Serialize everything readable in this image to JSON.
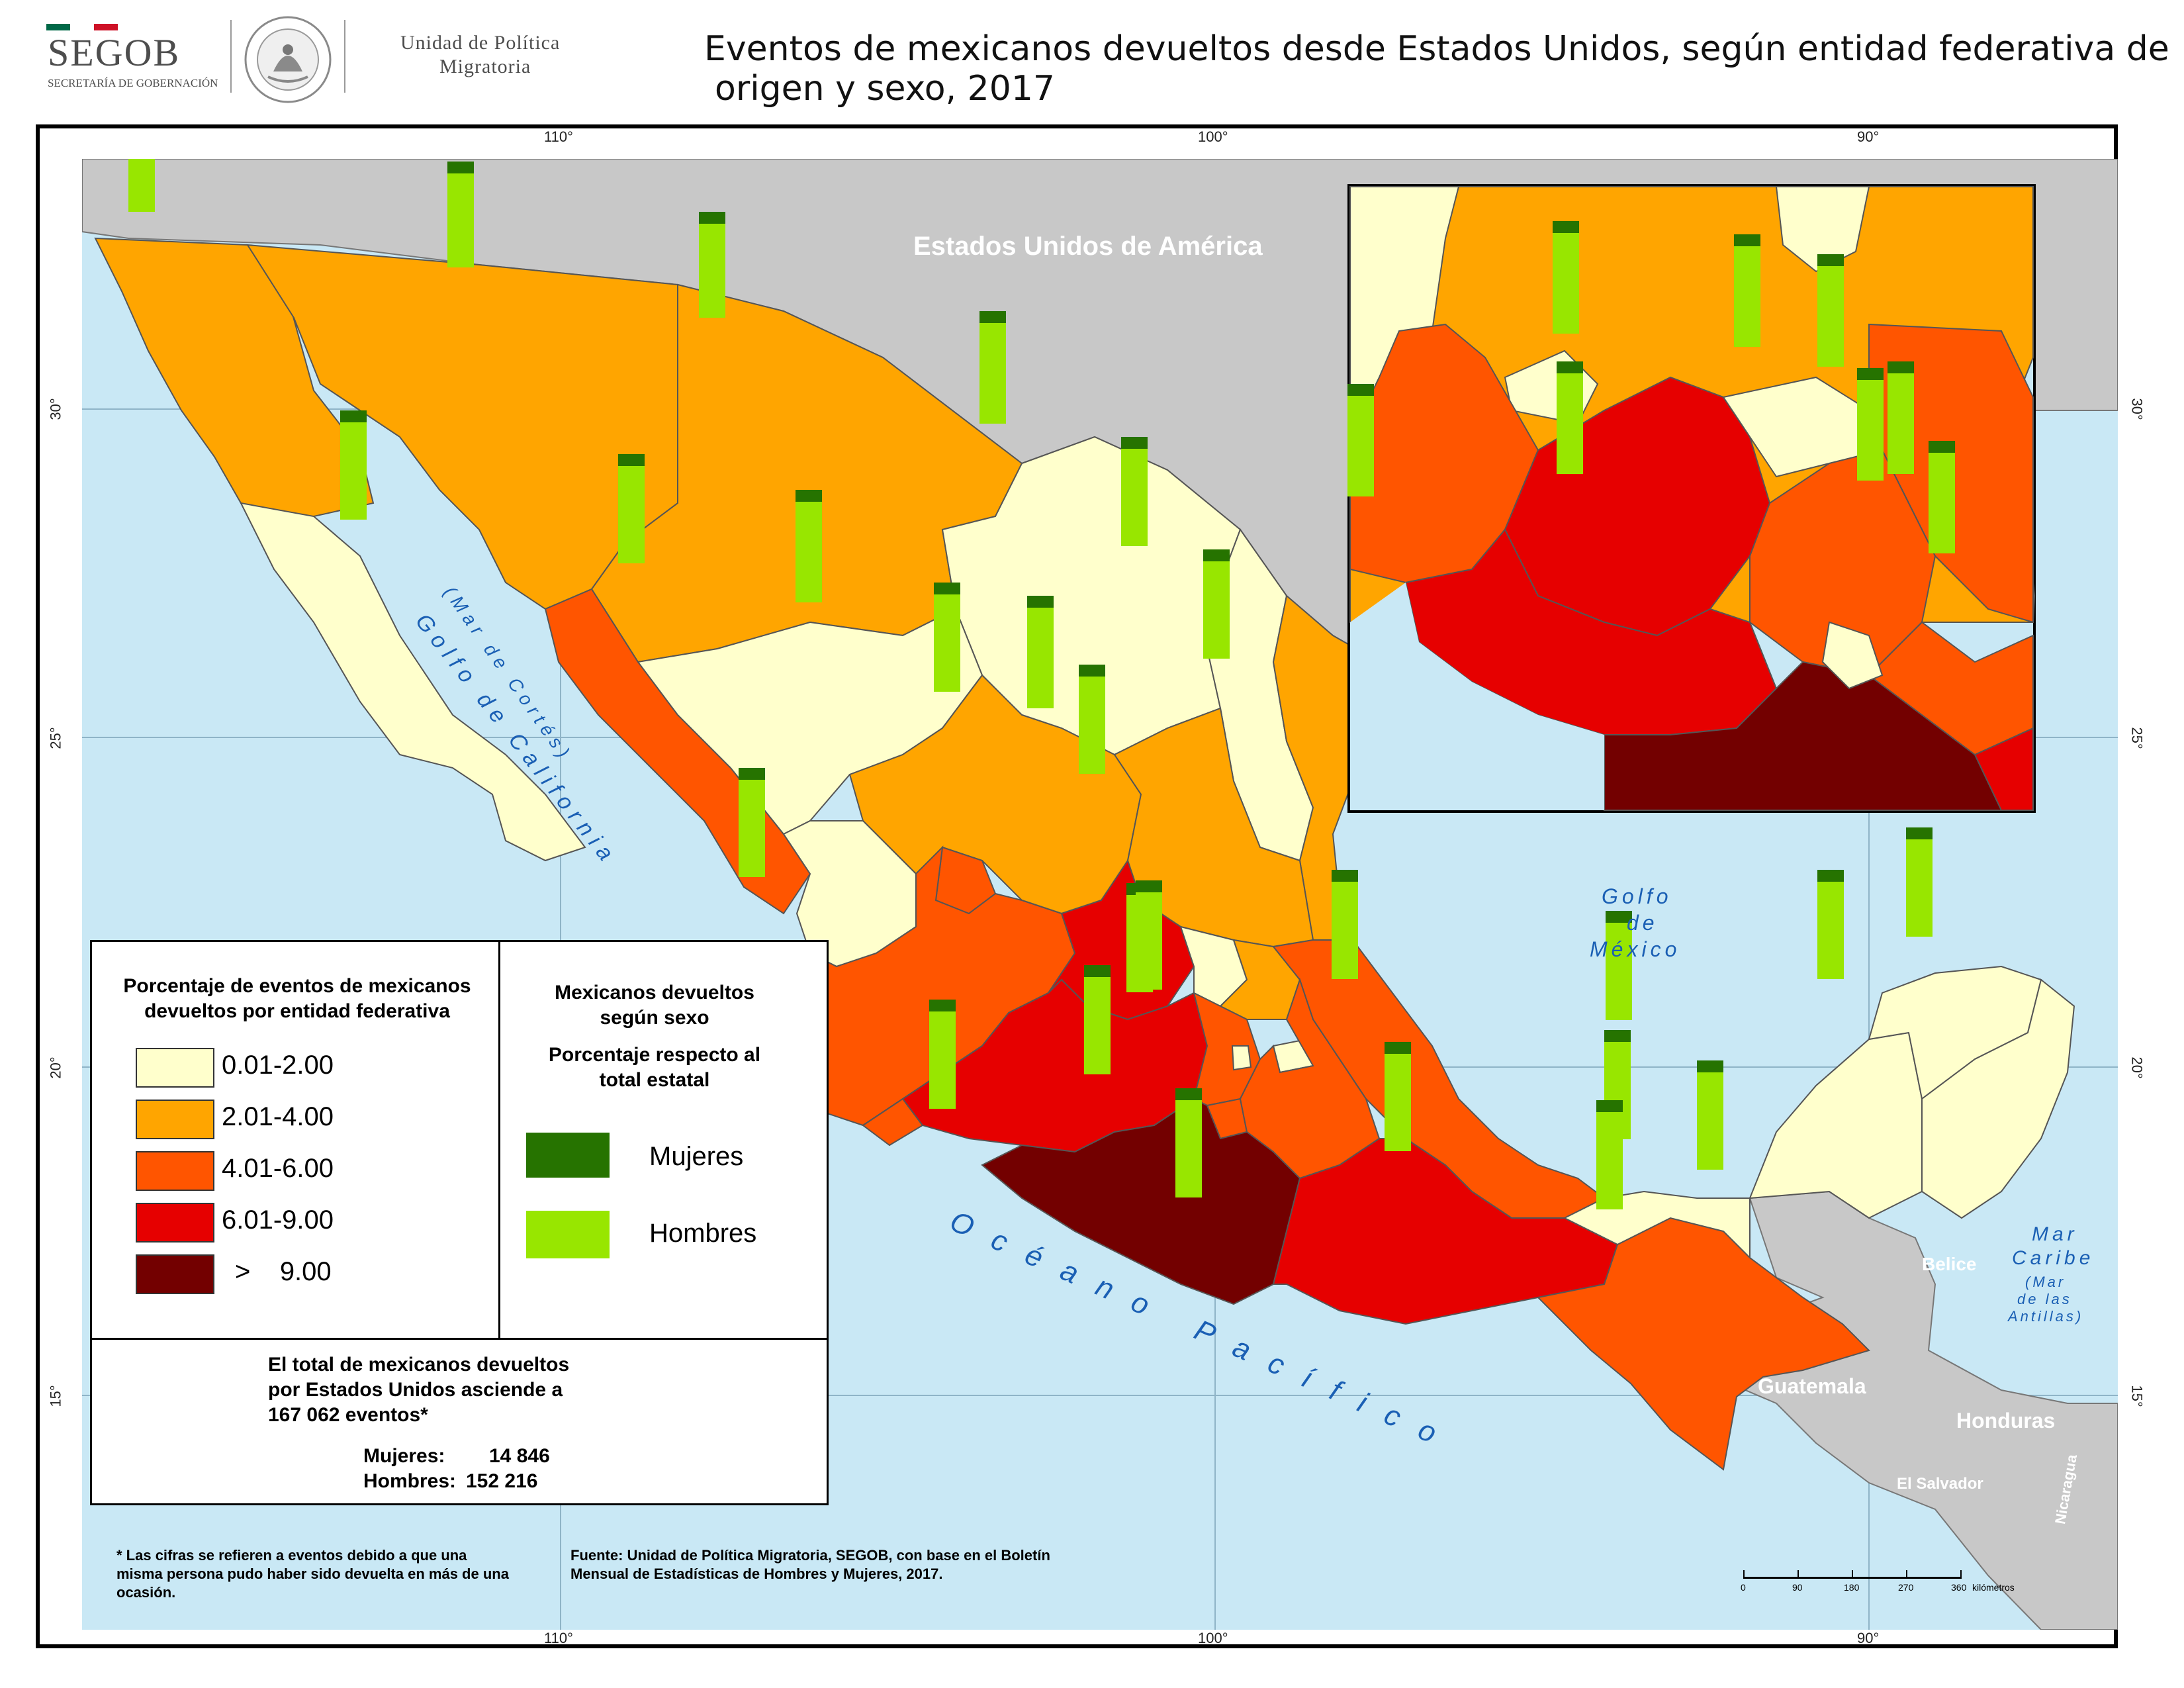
{
  "header": {
    "org_name": "SEGOB",
    "org_subtitle": "SECRETARÍA DE GOBERNACIÓN",
    "unit_line1": "Unidad de Política",
    "unit_line2": "Migratoria",
    "title_line1": "Eventos de mexicanos devueltos desde Estados Unidos, según entidad federativa de",
    "title_line2": "origen y sexo, 2017"
  },
  "graticule": {
    "lon_labels": [
      "110°",
      "100°",
      "90°"
    ],
    "lat_labels": [
      "30°",
      "25°",
      "20°",
      "15°"
    ]
  },
  "places": {
    "usa": "Estados Unidos de América",
    "gulf_cal_1": "Golfo de California",
    "gulf_cal_2": "(Mar de Cortés)",
    "gulf_mex_1": "Golfo",
    "gulf_mex_2": "de",
    "gulf_mex_3": "México",
    "pacific": "Océano Pacífico",
    "carib_1": "Mar",
    "carib_2": "Caribe",
    "carib_3": "(Mar",
    "carib_4": "de las",
    "carib_5": "Antillas)",
    "belize": "Belice",
    "guatemala": "Guatemala",
    "honduras": "Honduras",
    "el_salvador": "El Salvador",
    "nicaragua": "Nicaragua"
  },
  "legend_pct": {
    "title": "Porcentaje de eventos de mexicanos devueltos por entidad federativa",
    "classes": [
      {
        "label": "0.01-2.00",
        "color": "#ffffcc"
      },
      {
        "label": "2.01-4.00",
        "color": "#ffa500"
      },
      {
        "label": "4.01-6.00",
        "color": "#ff5500"
      },
      {
        "label": "6.01-9.00",
        "color": "#e60000"
      },
      {
        "label": ">    9.00",
        "color": "#730000"
      }
    ]
  },
  "legend_sex": {
    "title": "Mexicanos devueltos según sexo",
    "subtitle": "Porcentaje respecto al total estatal",
    "items": [
      {
        "label": "Mujeres",
        "color": "#267300"
      },
      {
        "label": "Hombres",
        "color": "#98e600"
      }
    ]
  },
  "totals": {
    "line1": "El total de mexicanos devueltos",
    "line2": "por Estados Unidos asciende a",
    "line3": "167 062 eventos*",
    "women_label": "Mujeres:",
    "women_value": "14 846",
    "men_label": "Hombres:",
    "men_value": "152 216"
  },
  "footnote": "* Las cifras se refieren a eventos debido a que una misma persona pudo haber sido devuelta en más de una ocasión.",
  "source": "Fuente: Unidad de Política Migratoria, SEGOB, con base en el Boletín Mensual de Estadísticas de Hombres y Mujeres, 2017.",
  "scale": {
    "ticks": [
      "0",
      "90",
      "180",
      "270",
      "360"
    ],
    "unit": "kilómetros"
  }
}
